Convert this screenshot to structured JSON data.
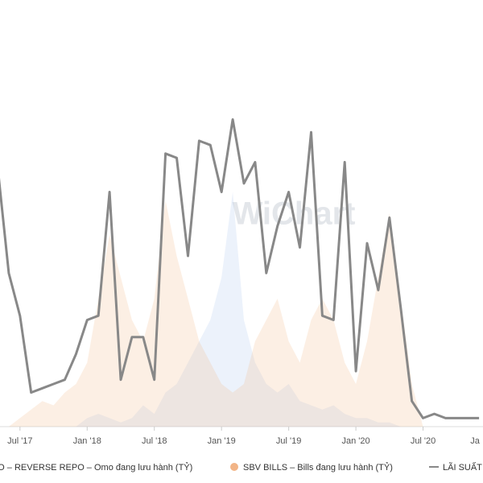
{
  "chart_data": {
    "type": "line",
    "watermark": "WiChart",
    "x": [
      "2017-05",
      "2017-06",
      "2017-07",
      "2017-08",
      "2017-09",
      "2017-10",
      "2017-11",
      "2017-12",
      "2018-01",
      "2018-02",
      "2018-03",
      "2018-04",
      "2018-05",
      "2018-06",
      "2018-07",
      "2018-08",
      "2018-09",
      "2018-10",
      "2018-11",
      "2018-12",
      "2019-01",
      "2019-02",
      "2019-03",
      "2019-04",
      "2019-05",
      "2019-06",
      "2019-07",
      "2019-08",
      "2019-09",
      "2019-10",
      "2019-11",
      "2019-12",
      "2020-01",
      "2020-02",
      "2020-03",
      "2020-04",
      "2020-05",
      "2020-06",
      "2020-07",
      "2020-08",
      "2020-09",
      "2020-10",
      "2020-11",
      "2020-12"
    ],
    "series": [
      {
        "name": "MO – REVERSE REPO – Omo đang lưu hành (TỶ)",
        "color": "#a9c4ee",
        "style": "area",
        "values": [
          0,
          0,
          0,
          0,
          0,
          0,
          0,
          0,
          2,
          3,
          2,
          1,
          2,
          5,
          3,
          8,
          10,
          15,
          20,
          25,
          35,
          55,
          25,
          15,
          10,
          8,
          10,
          6,
          5,
          4,
          5,
          3,
          2,
          2,
          1,
          1,
          0,
          0,
          0,
          0,
          0,
          0,
          0,
          0
        ]
      },
      {
        "name": "SBV BILLS – Bills đang lưu hành (TỶ)",
        "color": "#f2b486",
        "style": "area",
        "values": [
          0,
          0,
          2,
          4,
          6,
          5,
          8,
          10,
          15,
          30,
          45,
          35,
          25,
          20,
          30,
          53,
          40,
          30,
          20,
          15,
          10,
          8,
          10,
          20,
          25,
          30,
          20,
          15,
          25,
          30,
          25,
          15,
          10,
          20,
          35,
          50,
          30,
          10,
          0,
          0,
          0,
          0,
          0,
          0
        ]
      },
      {
        "name": "LÃI SUẤT",
        "color": "#888888",
        "style": "line",
        "values": [
          61,
          36,
          26,
          8,
          9,
          10,
          11,
          17,
          25,
          26,
          55,
          11,
          21,
          21,
          11,
          64,
          63,
          40,
          67,
          66,
          55,
          72,
          57,
          62,
          36,
          47,
          55,
          42,
          69,
          26,
          25,
          62,
          13,
          43,
          32,
          49,
          28,
          6,
          2,
          3,
          2,
          2,
          2,
          2
        ]
      }
    ],
    "xlim": [
      "2017-05",
      "2021-01"
    ],
    "ylim": [
      0,
      100
    ],
    "xticks": [
      {
        "value": "2017-07",
        "label": "Jul '17"
      },
      {
        "value": "2018-01",
        "label": "Jan '18"
      },
      {
        "value": "2018-07",
        "label": "Jul '18"
      },
      {
        "value": "2019-01",
        "label": "Jan '19"
      },
      {
        "value": "2019-07",
        "label": "Jul '19"
      },
      {
        "value": "2020-01",
        "label": "Jan '20"
      },
      {
        "value": "2020-07",
        "label": "Jul '20"
      },
      {
        "value": "2021-01",
        "label": "Ja"
      }
    ]
  }
}
